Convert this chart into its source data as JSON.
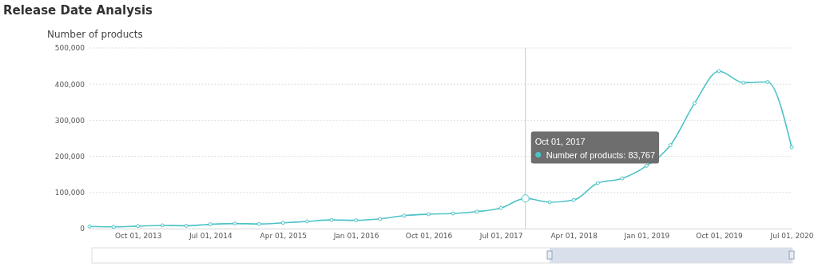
{
  "chart_data": {
    "type": "line",
    "title": "Release Date Analysis",
    "ylabel": "Number of products",
    "x": [
      "2013-04-01",
      "2013-07-01",
      "2013-10-01",
      "2014-01-01",
      "2014-04-01",
      "2014-07-01",
      "2014-10-01",
      "2015-01-01",
      "2015-04-01",
      "2015-07-01",
      "2015-10-01",
      "2016-01-01",
      "2016-04-01",
      "2016-07-01",
      "2016-10-01",
      "2017-01-01",
      "2017-04-01",
      "2017-07-01",
      "2017-10-01",
      "2018-01-01",
      "2018-04-01",
      "2018-07-01",
      "2018-10-01",
      "2019-01-01",
      "2019-04-01",
      "2019-07-01",
      "2019-10-01",
      "2020-01-01",
      "2020-04-01",
      "2020-07-01"
    ],
    "series": [
      {
        "color": "#4cc3c7",
        "values": [
          6000,
          5000,
          7000,
          9000,
          8000,
          12000,
          14000,
          13000,
          16000,
          20000,
          24000,
          23000,
          27000,
          36000,
          40000,
          42000,
          47000,
          57000,
          83767,
          73000,
          79000,
          126000,
          139000,
          174000,
          231000,
          347000,
          436000,
          404000,
          406000,
          225000
        ]
      }
    ],
    "xlim": [
      "2013-04-01",
      "2020-07-01"
    ],
    "xticks": [
      {
        "value": "2013-10-01",
        "label": "Oct 01, 2013"
      },
      {
        "value": "2014-07-01",
        "label": "Jul 01, 2014"
      },
      {
        "value": "2015-04-01",
        "label": "Apr 01, 2015"
      },
      {
        "value": "2016-01-01",
        "label": "Jan 01, 2016"
      },
      {
        "value": "2016-10-01",
        "label": "Oct 01, 2016"
      },
      {
        "value": "2017-07-01",
        "label": "Jul 01, 2017"
      },
      {
        "value": "2018-04-01",
        "label": "Apr 01, 2018"
      },
      {
        "value": "2019-01-01",
        "label": "Jan 01, 2019"
      },
      {
        "value": "2019-10-01",
        "label": "Oct 01, 2019"
      },
      {
        "value": "2020-07-01",
        "label": "Jul 01, 2020"
      }
    ],
    "ylim": [
      0,
      500000
    ],
    "yticks": [
      {
        "value": 0,
        "label": "0"
      },
      {
        "value": 100000,
        "label": "100,000"
      },
      {
        "value": 200000,
        "label": "200,000"
      },
      {
        "value": 300000,
        "label": "300,000"
      },
      {
        "value": 400000,
        "label": "400,000"
      },
      {
        "value": 500000,
        "label": "500,000"
      }
    ],
    "grid": "y",
    "marker": "circle",
    "line_style": "solid",
    "ref_lines": [
      {
        "axis": "x",
        "value": "2017-10-01",
        "color": "#c8c8c8"
      }
    ],
    "annotations": [
      "Oct 01, 2017\nNumber of products: 83,767"
    ]
  }
}
